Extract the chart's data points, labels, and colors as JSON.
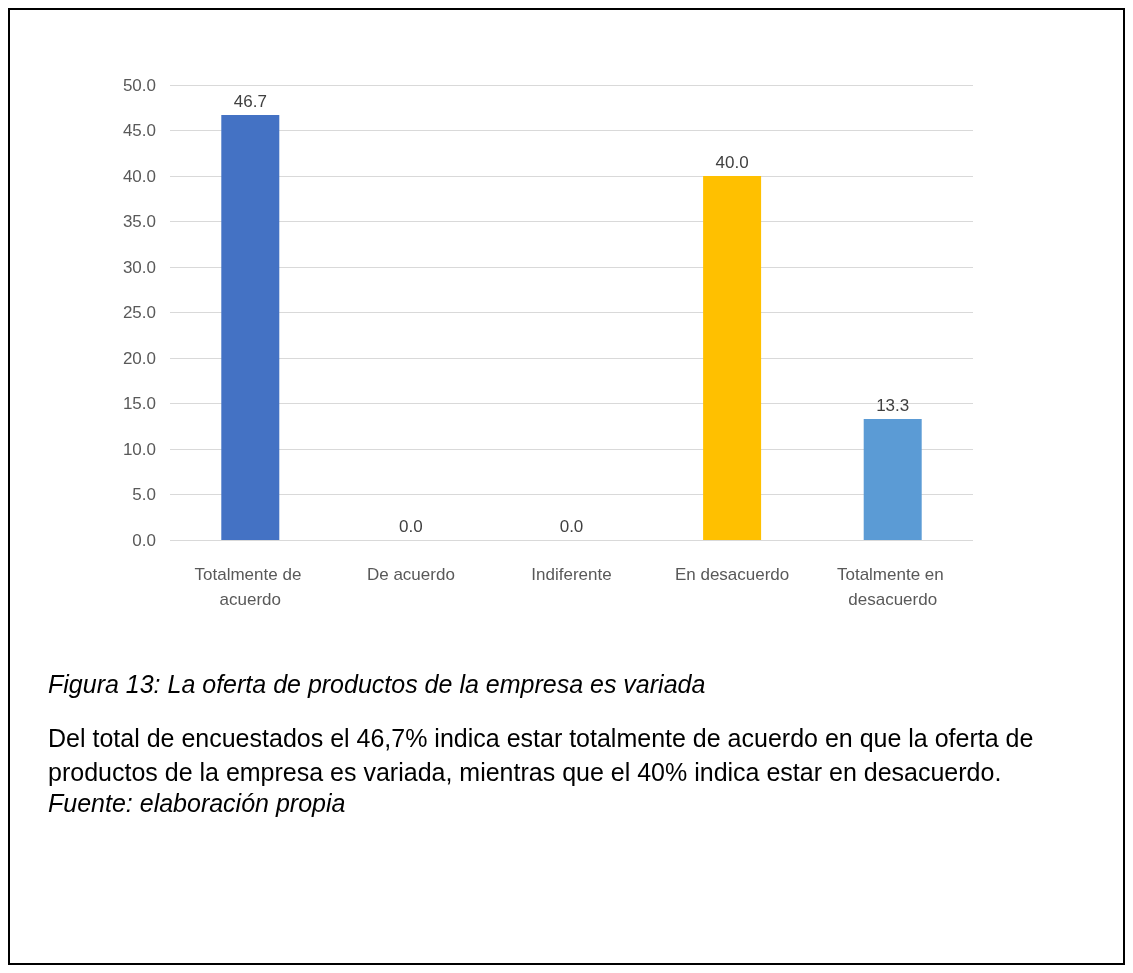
{
  "chart_data": {
    "type": "bar",
    "categories": [
      "Totalmente de acuerdo",
      "De acuerdo",
      "Indiferente",
      "En desacuerdo",
      "Totalmente en desacuerdo"
    ],
    "values": [
      46.7,
      0.0,
      0.0,
      40.0,
      13.3
    ],
    "value_labels": [
      "46.7",
      "0.0",
      "0.0",
      "40.0",
      "13.3"
    ],
    "colors": [
      "#4472c4",
      "#c55a11",
      "#7f7f7f",
      "#ffc000",
      "#5b9bd5"
    ],
    "ylim": [
      0,
      50
    ],
    "yticks": [
      {
        "value": 0,
        "label": "0.0"
      },
      {
        "value": 5,
        "label": "5.0"
      },
      {
        "value": 10,
        "label": "10.0"
      },
      {
        "value": 15,
        "label": "15.0"
      },
      {
        "value": 20,
        "label": "20.0"
      },
      {
        "value": 25,
        "label": "25.0"
      },
      {
        "value": 30,
        "label": "30.0"
      },
      {
        "value": 35,
        "label": "35.0"
      },
      {
        "value": 40,
        "label": "40.0"
      },
      {
        "value": 45,
        "label": "45.0"
      },
      {
        "value": 50,
        "label": "50.0"
      }
    ],
    "grid": true,
    "annotations": [
      "Figura 13: La oferta de productos de la empresa es variada",
      "Del total de encuestados el 46,7% indica estar totalmente de acuerdo en que la oferta de productos de la empresa es variada, mientras que el 40% indica estar en desacuerdo.",
      "Fuente: elaboración propia"
    ]
  }
}
